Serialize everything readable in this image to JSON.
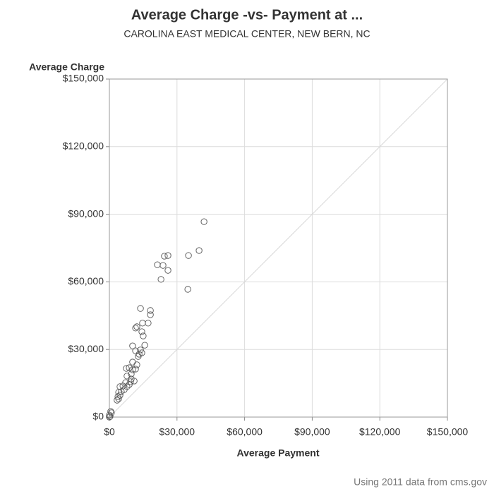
{
  "chart_data": {
    "type": "scatter",
    "title": "Average Charge -vs- Payment at ...",
    "subtitle": "CAROLINA EAST MEDICAL CENTER, NEW BERN, NC",
    "x_label": "Average Payment",
    "y_label": "Average Charge",
    "footnote": "Using 2011 data from cms.gov",
    "x": [
      42000,
      39800,
      35100,
      34800,
      24400,
      26000,
      23800,
      21300,
      26000,
      22900,
      18200,
      18200,
      13800,
      14700,
      17200,
      12200,
      11600,
      14400,
      15000,
      15700,
      10300,
      13800,
      14400,
      11600,
      12800,
      13200,
      10300,
      12200,
      7500,
      8800,
      10300,
      11600,
      9700,
      7800,
      11000,
      9700,
      8800,
      7200,
      6000,
      4700,
      6600,
      5300,
      4100,
      4700,
      3800,
      4100,
      3400,
      7800,
      9400,
      600,
      900,
      0,
      0,
      300
    ],
    "values": [
      86700,
      73900,
      71700,
      56700,
      71400,
      71700,
      67300,
      67600,
      65100,
      61100,
      47300,
      45400,
      48200,
      41700,
      41700,
      40100,
      39500,
      37900,
      36000,
      31900,
      31600,
      29800,
      28500,
      29400,
      26900,
      27900,
      24400,
      23200,
      21600,
      21900,
      21000,
      21300,
      19100,
      18200,
      16000,
      16900,
      14400,
      15300,
      13800,
      13500,
      12200,
      11300,
      11000,
      9700,
      9100,
      8100,
      7500,
      13500,
      15700,
      2500,
      1900,
      900,
      0,
      300
    ],
    "color": "#555555",
    "xlim": [
      0,
      150000
    ],
    "ylim": [
      0,
      150000
    ],
    "xticks": [
      {
        "value": 0,
        "label": "$0"
      },
      {
        "value": 30000,
        "label": "$30,000"
      },
      {
        "value": 60000,
        "label": "$60,000"
      },
      {
        "value": 90000,
        "label": "$90,000"
      },
      {
        "value": 120000,
        "label": "$120,000"
      },
      {
        "value": 150000,
        "label": "$150,000"
      }
    ],
    "yticks": [
      {
        "value": 0,
        "label": "$0"
      },
      {
        "value": 30000,
        "label": "$30,000"
      },
      {
        "value": 60000,
        "label": "$60,000"
      },
      {
        "value": 90000,
        "label": "$90,000"
      },
      {
        "value": 120000,
        "label": "$120,000"
      },
      {
        "value": 150000,
        "label": "$150,000"
      }
    ],
    "grid": true
  }
}
